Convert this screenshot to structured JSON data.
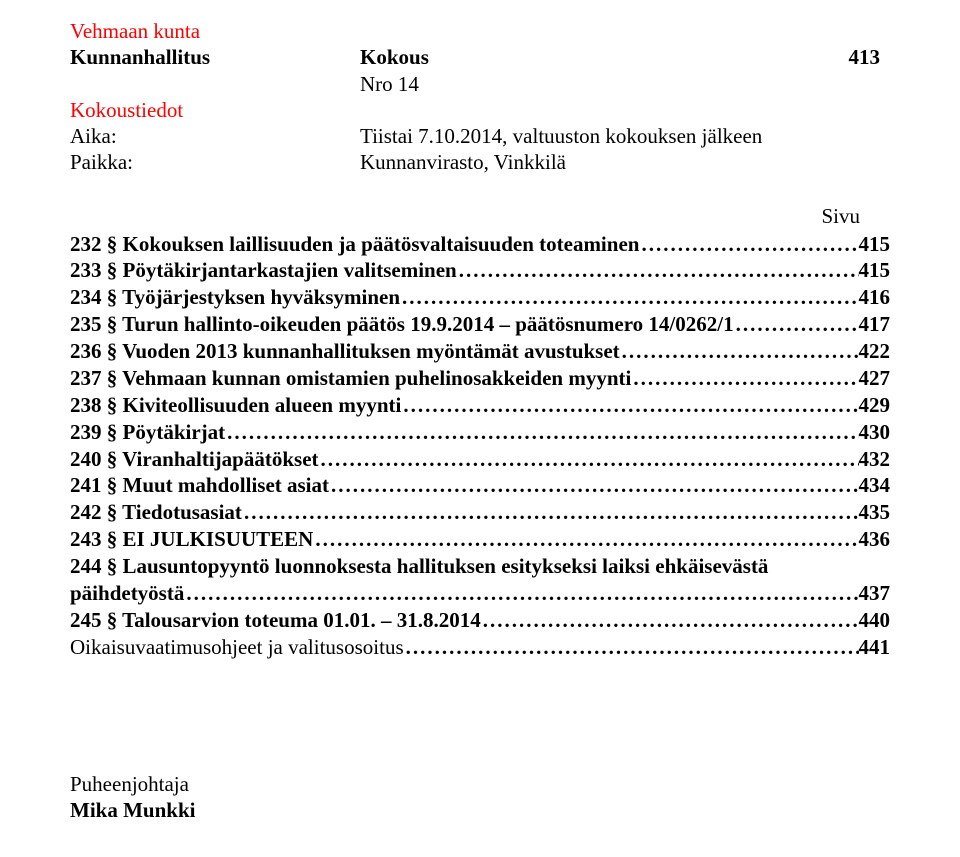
{
  "header": {
    "org": "Vehmaan kunta",
    "board": "Kunnanhallitus",
    "mtg_label": "Kokous",
    "page_no": "413",
    "nro_line": "Nro 14",
    "info_label": "Kokoustiedot",
    "aika_label": "Aika:",
    "aika_value": "Tiistai 7.10.2014, valtuuston kokouksen jälkeen",
    "paikka_label": "Paikka:",
    "paikka_value": "Kunnanvirasto, Vinkkilä"
  },
  "sivu_label": "Sivu",
  "toc": [
    {
      "title": "232 § Kokouksen laillisuuden ja päätösvaltaisuuden toteaminen",
      "page": "415",
      "bold": true
    },
    {
      "title": "233 § Pöytäkirjantarkastajien valitseminen",
      "page": "415",
      "bold": true
    },
    {
      "title": "234 § Työjärjestyksen hyväksyminen",
      "page": "416",
      "bold": true
    },
    {
      "title": "235 § Turun hallinto-oikeuden päätös 19.9.2014 – päätösnumero 14/0262/1",
      "page": "417",
      "bold": true
    },
    {
      "title": "236 § Vuoden 2013 kunnanhallituksen myöntämät avustukset",
      "page": "422",
      "bold": true
    },
    {
      "title": "237 § Vehmaan kunnan omistamien puhelinosakkeiden myynti",
      "page": "427",
      "bold": true
    },
    {
      "title": "238 § Kiviteollisuuden alueen myynti",
      "page": "429",
      "bold": true
    },
    {
      "title": "239 § Pöytäkirjat",
      "page": "430",
      "bold": true
    },
    {
      "title": "240 § Viranhaltijapäätökset",
      "page": "432",
      "bold": true
    },
    {
      "title": "241 § Muut mahdolliset asiat",
      "page": "434",
      "bold": true
    },
    {
      "title": "242 § Tiedotusasiat",
      "page": "435",
      "bold": true
    },
    {
      "title": "243 § EI JULKISUUTEEN",
      "page": "436",
      "bold": true
    },
    {
      "title": "244 § Lausuntopyyntö luonnoksesta hallituksen esitykseksi laiksi ehkäisevästä",
      "page": "",
      "bold": true,
      "noleader": true
    },
    {
      "title": "päihdetyöstä",
      "page": "437",
      "bold": true,
      "cont": true
    },
    {
      "title": "245 § Talousarvion toteuma 01.01. – 31.8.2014",
      "page": "440",
      "bold": true
    },
    {
      "title": "Oikaisuvaatimusohjeet ja valitusosoitus",
      "page": "441",
      "bold": false
    }
  ],
  "footer": {
    "role": "Puheenjohtaja",
    "name": "Mika Munkki"
  },
  "leader_dots": "................................................................................................................................................................................................................................................"
}
